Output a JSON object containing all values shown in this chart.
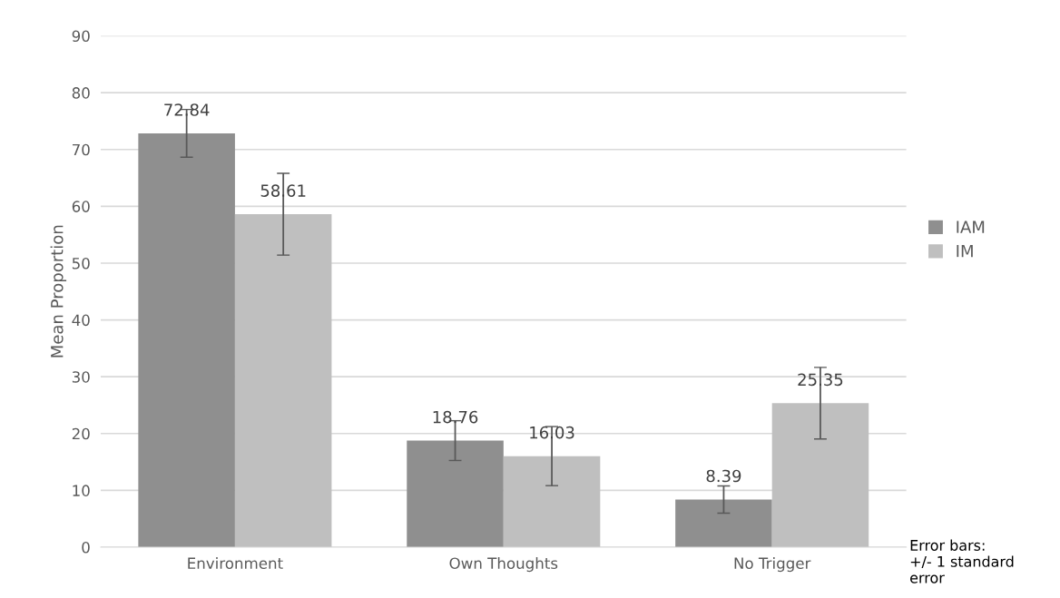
{
  "chart_data": {
    "type": "bar",
    "ylabel": "Mean Proportion",
    "categories": [
      "Environment",
      "Own Thoughts",
      "No Trigger"
    ],
    "series": [
      {
        "name": "IAM",
        "color": "#8f8f8f",
        "values": [
          72.84,
          18.76,
          8.39
        ],
        "errors": [
          4.2,
          3.5,
          2.4
        ]
      },
      {
        "name": "IM",
        "color": "#bfbfbf",
        "values": [
          58.61,
          16.03,
          25.35
        ],
        "errors": [
          7.2,
          5.2,
          6.3
        ]
      }
    ],
    "ylim": [
      0,
      90
    ],
    "yticks": [
      0,
      10,
      20,
      30,
      40,
      50,
      60,
      70,
      80,
      90
    ],
    "grid": "y",
    "legend": "right",
    "data_labels": true,
    "annotations": [
      "Error bars:\n+/- 1 standard\nerror"
    ]
  }
}
